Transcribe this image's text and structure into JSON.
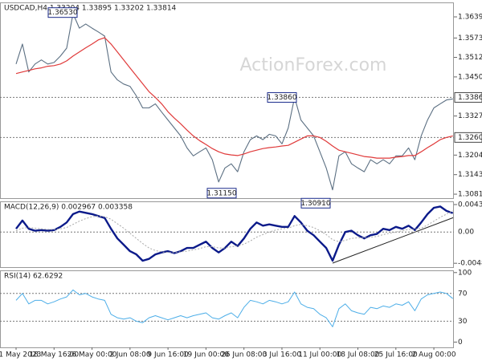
{
  "chart_data": [
    {
      "type": "line",
      "title": "USDCAD,H4  1.33204 1.33895 1.33202 1.33814",
      "watermark": "ActionForex.com",
      "categories": [
        "11 May 2023",
        null,
        null,
        null,
        null,
        null,
        "18 May 16:00",
        null,
        null,
        null,
        null,
        null,
        "26 May 00:00",
        null,
        null,
        null,
        null,
        null,
        "2 Jun 08:00",
        null,
        null,
        null,
        null,
        null,
        "9 Jun 16:00",
        null,
        null,
        null,
        null,
        null,
        "19 Jun 00:00",
        null,
        null,
        null,
        null,
        null,
        "26 Jun 08:00",
        null,
        null,
        null,
        null,
        null,
        "3 Jul 16:00",
        null,
        null,
        null,
        null,
        null,
        "11 Jul 00:00",
        null,
        null,
        null,
        null,
        null,
        "18 Jul 08:00",
        null,
        null,
        null,
        null,
        null,
        "25 Jul 16:00",
        null,
        null,
        null,
        null,
        null,
        "2 Aug 00:00",
        null,
        null,
        null
      ],
      "series": [
        {
          "name": "USDCAD",
          "color": "#5b6f82",
          "values": [
            1.3491,
            1.3554,
            1.3466,
            1.3491,
            1.3504,
            1.3491,
            1.3496,
            1.3516,
            1.3541,
            1.365,
            1.3604,
            1.3617,
            1.3604,
            1.3592,
            1.3579,
            1.3466,
            1.3441,
            1.3428,
            1.3421,
            1.3391,
            1.3353,
            1.3353,
            1.3366,
            1.334,
            1.3315,
            1.329,
            1.3265,
            1.3227,
            1.3202,
            1.3215,
            1.3227,
            1.319,
            1.312,
            1.3164,
            1.3177,
            1.3152,
            1.3215,
            1.3253,
            1.3265,
            1.3253,
            1.327,
            1.3265,
            1.324,
            1.329,
            1.3386,
            1.3315,
            1.329,
            1.3265,
            1.3215,
            1.3164,
            1.3095,
            1.3202,
            1.3215,
            1.3177,
            1.3164,
            1.3152,
            1.319,
            1.3177,
            1.319,
            1.3177,
            1.3202,
            1.3202,
            1.3227,
            1.319,
            1.3265,
            1.3315,
            1.3353,
            1.3366,
            1.3378,
            1.33814
          ]
        },
        {
          "name": "MA",
          "color": "#e03a3a",
          "values": [
            1.3461,
            1.3466,
            1.3471,
            1.3476,
            1.3479,
            1.3484,
            1.3486,
            1.3491,
            1.3501,
            1.3516,
            1.3529,
            1.3542,
            1.3554,
            1.3567,
            1.3574,
            1.3554,
            1.3529,
            1.3504,
            1.3479,
            1.3454,
            1.3429,
            1.3404,
            1.3386,
            1.3366,
            1.3341,
            1.3321,
            1.3303,
            1.3283,
            1.3265,
            1.325,
            1.3238,
            1.3225,
            1.3215,
            1.3208,
            1.3205,
            1.3203,
            1.3208,
            1.3215,
            1.322,
            1.3225,
            1.3228,
            1.323,
            1.3233,
            1.3235,
            1.3245,
            1.3255,
            1.3265,
            1.3265,
            1.326,
            1.3248,
            1.3233,
            1.322,
            1.3215,
            1.321,
            1.3205,
            1.32,
            1.3198,
            1.3195,
            1.3195,
            1.3195,
            1.3198,
            1.32,
            1.3203,
            1.3203,
            1.3215,
            1.3228,
            1.324,
            1.3253,
            1.326,
            1.3265
          ]
        }
      ],
      "ylim": [
        1.3069,
        1.3685
      ],
      "yticks": [
        1.36395,
        {
          "value": 1.3573,
          "label": "1.35730"
        },
        {
          "value": 1.3512,
          "label": "1.35120"
        },
        1.34505,
        1.33275,
        1.32045,
        {
          "value": 1.3143,
          "label": "1.31430"
        },
        1.30815
      ],
      "hlines": [
        {
          "value": 1.3386,
          "label": "1.33860"
        },
        {
          "value": 1.326,
          "label": "1.32600"
        }
      ],
      "annotations": [
        {
          "value": 1.3653,
          "label": "1.36530"
        },
        {
          "value": 1.3386,
          "label": "1.33860"
        },
        {
          "value": 1.3115,
          "label": "1.31150"
        },
        {
          "value": 1.3091,
          "label": "1.30910"
        }
      ]
    },
    {
      "type": "line",
      "title": "MACD(12,26,9) 0.002967 0.003358",
      "series": [
        {
          "name": "MACD",
          "color": "#0b1a8a",
          "values": [
            0.0005,
            0.0018,
            0.0005,
            0.0002,
            0.0003,
            0.0002,
            0.0003,
            0.0008,
            0.0015,
            0.0028,
            0.0032,
            0.003,
            0.0028,
            0.0025,
            0.0022,
            0.0005,
            -0.001,
            -0.002,
            -0.003,
            -0.0035,
            -0.0045,
            -0.0042,
            -0.0035,
            -0.0032,
            -0.003,
            -0.0033,
            -0.003,
            -0.0025,
            -0.0025,
            -0.002,
            -0.0015,
            -0.0025,
            -0.0032,
            -0.0025,
            -0.0015,
            -0.0022,
            -0.001,
            0.0005,
            0.0015,
            0.001,
            0.0012,
            0.001,
            0.0008,
            0.0008,
            0.0025,
            0.0015,
            0.0002,
            -0.0005,
            -0.0015,
            -0.0025,
            -0.0045,
            -0.002,
            0.0,
            0.0002,
            -0.0005,
            -0.001,
            -0.0005,
            -0.0003,
            0.0005,
            0.0003,
            0.0008,
            0.0005,
            0.001,
            0.0003,
            0.0015,
            0.0028,
            0.0038,
            0.004,
            0.0033,
            0.002967
          ]
        },
        {
          "name": "Signal",
          "color": "#a8a8a8",
          "style": "dotted",
          "values": [
            0.0002,
            0.0006,
            0.0007,
            0.0006,
            0.0005,
            0.0004,
            0.0004,
            0.0005,
            0.0007,
            0.0012,
            0.0017,
            0.0021,
            0.0024,
            0.0025,
            0.0024,
            0.002,
            0.0013,
            0.0006,
            -0.0002,
            -0.001,
            -0.0018,
            -0.0025,
            -0.0029,
            -0.0031,
            -0.0032,
            -0.0032,
            -0.0031,
            -0.003,
            -0.0028,
            -0.0026,
            -0.0023,
            -0.0023,
            -0.0025,
            -0.0025,
            -0.0023,
            -0.0022,
            -0.0019,
            -0.0014,
            -0.0008,
            -0.0004,
            0.0,
            0.0003,
            0.0005,
            0.0006,
            0.001,
            0.0012,
            0.001,
            0.0007,
            0.0002,
            -0.0004,
            -0.0012,
            -0.0015,
            -0.0013,
            -0.001,
            -0.0009,
            -0.0009,
            -0.0008,
            -0.0007,
            -0.0004,
            -0.0002,
            0.0,
            0.0002,
            0.0004,
            0.0004,
            0.0006,
            0.0011,
            0.0017,
            0.0023,
            0.0028,
            0.003358
          ]
        }
      ],
      "ylim": [
        -0.0055,
        0.0048
      ],
      "yticks": [
        0.0043,
        -0.004895
      ],
      "hlines": [
        {
          "value": 0,
          "label": "0.00"
        }
      ]
    },
    {
      "type": "line",
      "title": "RSI(14) 62.6292",
      "series": [
        {
          "name": "RSI",
          "color": "#4daee8",
          "values": [
            60,
            70,
            55,
            60,
            60,
            55,
            58,
            62,
            65,
            75,
            68,
            70,
            65,
            62,
            60,
            40,
            35,
            33,
            35,
            30,
            28,
            35,
            38,
            35,
            32,
            35,
            38,
            35,
            38,
            40,
            42,
            35,
            33,
            38,
            42,
            35,
            50,
            60,
            58,
            55,
            60,
            58,
            55,
            58,
            72,
            55,
            50,
            48,
            40,
            35,
            22,
            48,
            55,
            45,
            42,
            40,
            50,
            48,
            52,
            50,
            55,
            53,
            58,
            45,
            62,
            68,
            70,
            72,
            70,
            62.6292
          ]
        }
      ],
      "ylim": [
        -7.6,
        103.2
      ],
      "yticks": [
        100,
        0
      ],
      "hlines": [
        70,
        30
      ]
    }
  ]
}
